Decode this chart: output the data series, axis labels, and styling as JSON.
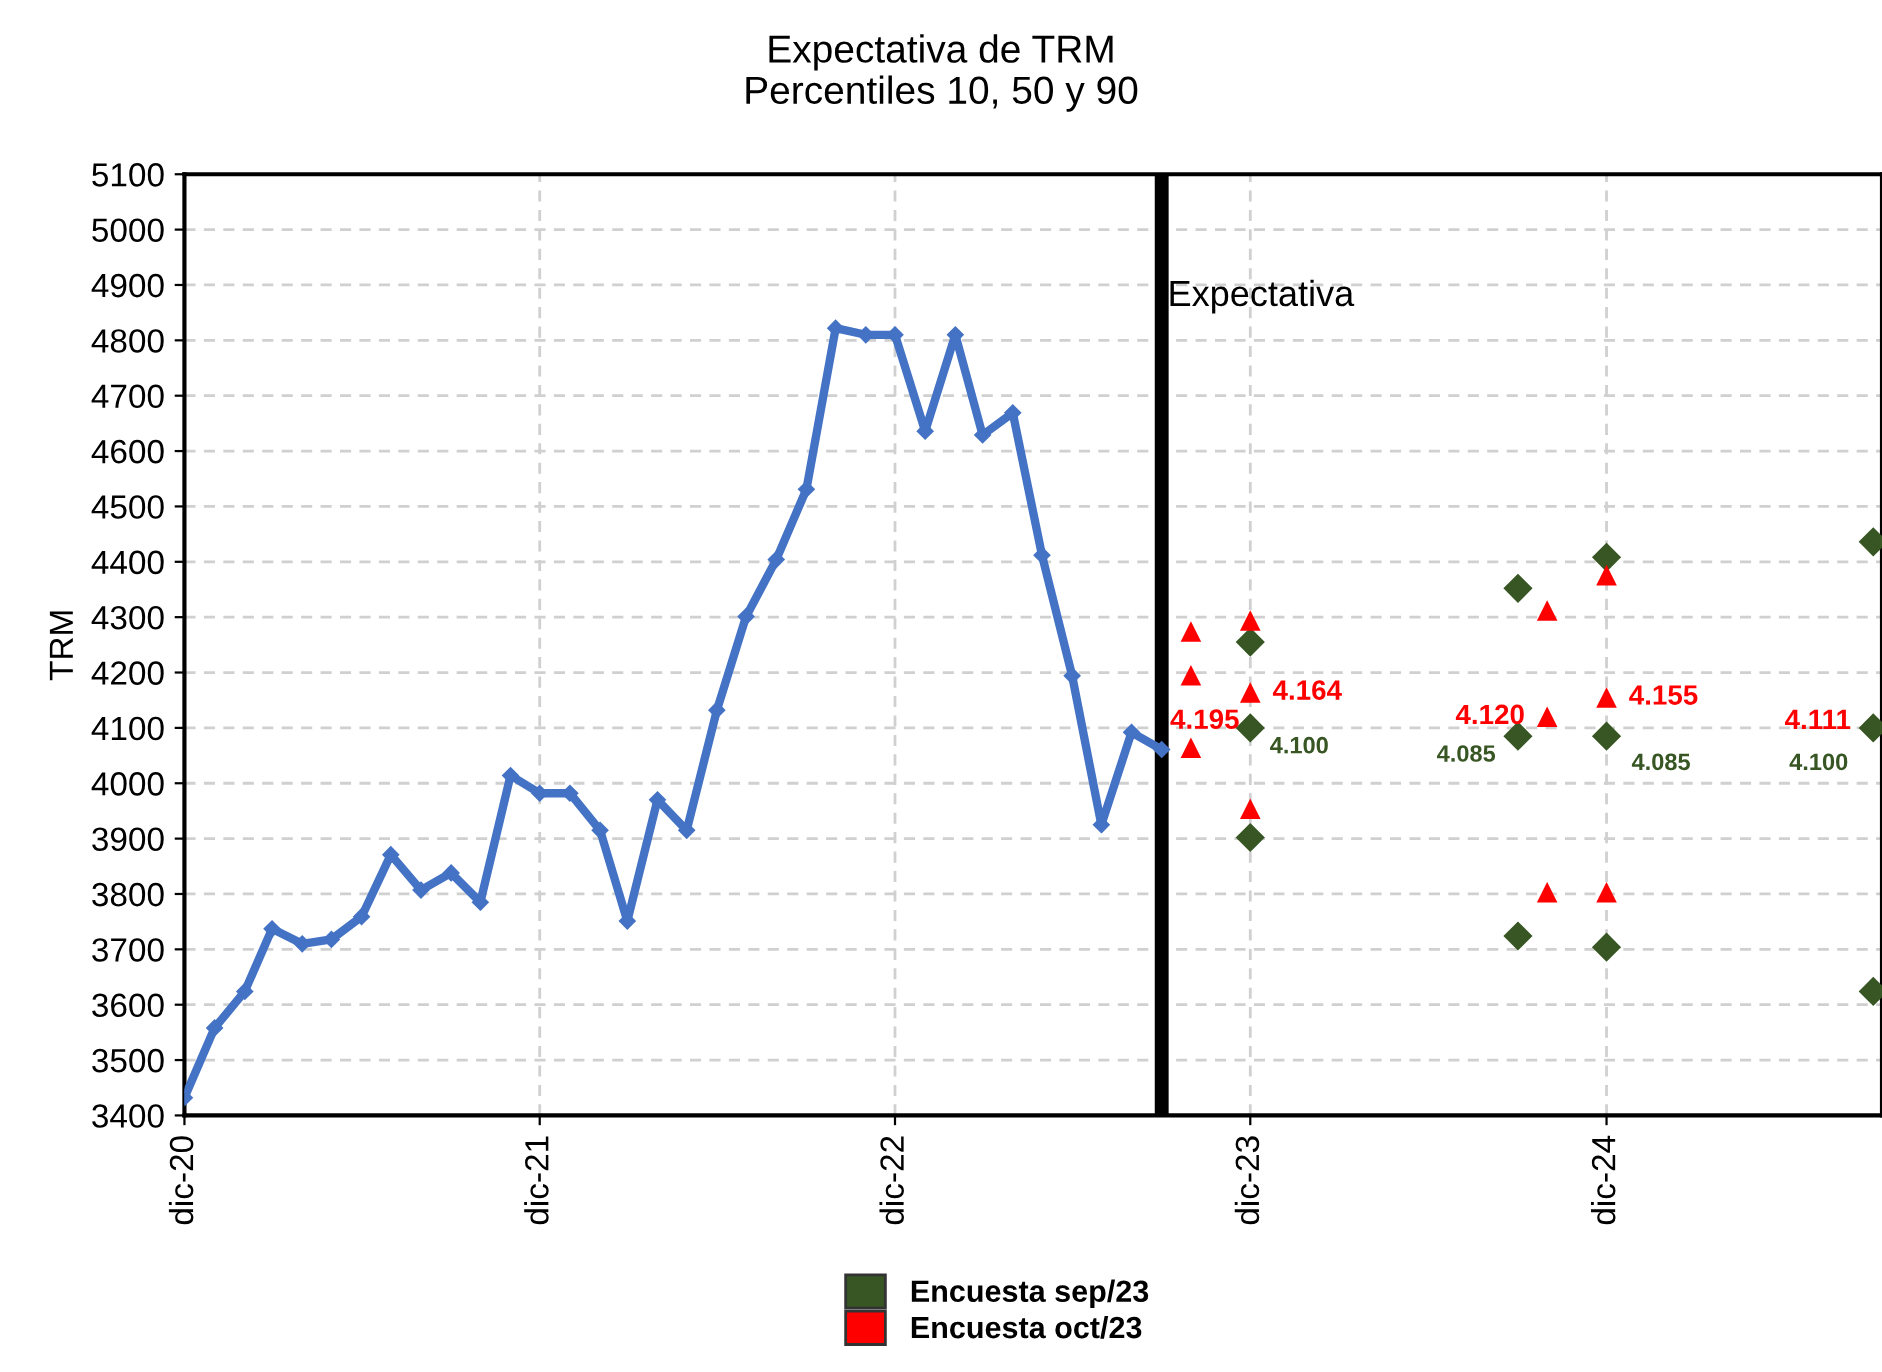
{
  "chart_data": {
    "type": "line",
    "title": "Expectativa de TRM",
    "subtitle": "Percentiles 10, 50 y 90",
    "ylabel": "TRM",
    "xlim": [
      "2020-12",
      "2025-09-10"
    ],
    "ylim": [
      3400,
      5100
    ],
    "xticks": [
      {
        "value": "2020-12",
        "label": "dic-20"
      },
      {
        "value": "2021-12",
        "label": "dic-21"
      },
      {
        "value": "2022-12",
        "label": "dic-22"
      },
      {
        "value": "2023-12",
        "label": "dic-23"
      },
      {
        "value": "2024-12",
        "label": "dic-24"
      }
    ],
    "yticks": [
      3400,
      3500,
      3600,
      3700,
      3800,
      3900,
      4000,
      4100,
      4200,
      4300,
      4400,
      4500,
      4600,
      4700,
      4800,
      4900,
      5000,
      5100
    ],
    "grid": true,
    "legend": "bottom",
    "line_style": "solid",
    "ref_lines": [
      {
        "axis": "x",
        "value": "2023-09",
        "label": "Expectativa",
        "color": "#000000"
      }
    ],
    "annotations": [
      {
        "text": "4.111",
        "x": "2025-09",
        "y": 4111
      }
    ],
    "series": [
      {
        "color": "#4472c4",
        "marker": "diamond",
        "x": [
          "2020-12",
          "2021-01",
          "2021-02",
          "2021-03",
          "2021-04",
          "2021-05",
          "2021-06",
          "2021-07",
          "2021-08",
          "2021-09",
          "2021-10",
          "2021-11",
          "2021-12",
          "2022-01",
          "2022-02",
          "2022-03",
          "2022-04",
          "2022-05",
          "2022-06",
          "2022-07",
          "2022-08",
          "2022-09",
          "2022-10",
          "2022-11",
          "2022-12",
          "2023-01",
          "2023-02",
          "2023-03",
          "2023-04",
          "2023-05",
          "2023-06",
          "2023-07",
          "2023-08",
          "2023-09"
        ],
        "values": [
          3432,
          3558,
          3624,
          3737,
          3710,
          3718,
          3759,
          3871,
          3807,
          3838,
          3785,
          4014,
          3982,
          3982,
          3915,
          3751,
          3970,
          3915,
          4132,
          4301,
          4404,
          4531,
          4822,
          4810,
          4810,
          4636,
          4810,
          4629,
          4669,
          4412,
          4194,
          3925,
          4092,
          4061
        ]
      },
      {
        "type": "scatter",
        "name": "Encuesta sep/23",
        "color": "#375623",
        "marker": "diamond",
        "x": [
          "2023-12",
          "2023-12",
          "2023-12",
          "2024-09",
          "2024-09",
          "2024-09",
          "2024-12",
          "2024-12",
          "2024-12",
          "2025-09",
          "2025-09",
          "2025-09"
        ],
        "values": [
          4255,
          4100,
          3902,
          4352,
          4085,
          3724,
          4408,
          4085,
          3704,
          4436,
          4100,
          3624
        ],
        "value_labels": [
          null,
          "4.100",
          null,
          null,
          "4.085",
          null,
          null,
          "4.085",
          null,
          null,
          "4.100",
          null
        ]
      },
      {
        "type": "scatter",
        "name": "Encuesta oct/23",
        "color": "#ff0000",
        "marker": "triangle",
        "x": [
          "2023-10",
          "2023-10",
          "2023-10",
          "2023-12",
          "2023-12",
          "2023-12",
          "2024-10",
          "2024-10",
          "2024-10",
          "2024-12",
          "2024-12",
          "2024-12"
        ],
        "values": [
          4274,
          4195,
          4064,
          4294,
          4164,
          3954,
          4312,
          4120,
          3803,
          4376,
          4155,
          3803
        ],
        "value_labels": [
          null,
          "4.195",
          null,
          null,
          "4.164",
          null,
          null,
          "4.120",
          null,
          null,
          "4.155",
          null
        ]
      }
    ]
  }
}
